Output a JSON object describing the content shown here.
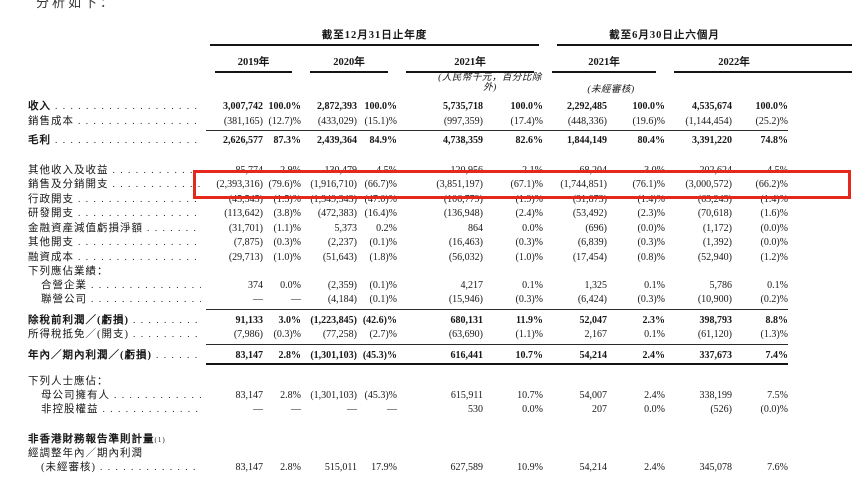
{
  "intro_text": "分析如下：",
  "highlight": {
    "color": "#e5281c",
    "row_label": "銷售及分銷開支"
  },
  "table": {
    "group_headers": [
      {
        "label": "截至12月31日止年度"
      },
      {
        "label": "截至6月30日止六個月"
      }
    ],
    "year_headers": [
      "2019年",
      "2020年",
      "2021年",
      "2021年",
      "2022年"
    ],
    "notes": {
      "currency_note": "(人民幣千元，百分比除外)",
      "unaudited_note": "(未經審核)"
    },
    "rows": [
      {
        "label": "收入",
        "bold": true,
        "leader": true,
        "cells": [
          "3,007,742",
          "100.0%",
          "2,872,393",
          "100.0%",
          "5,735,718",
          "100.0%",
          "2,292,485",
          "100.0%",
          "4,535,674",
          "100.0%"
        ]
      },
      {
        "label": "銷售成本",
        "leader": true,
        "underline": "thin",
        "cells": [
          "(381,165)",
          "(12.7)%",
          "(433,029)",
          "(15.1)%",
          "(997,359)",
          "(17.4)%",
          "(448,336)",
          "(19.6)%",
          "(1,144,454)",
          "(25.2)%"
        ]
      },
      {
        "label": "毛利",
        "bold": true,
        "leader": true,
        "gap": 3,
        "cells": [
          "2,626,577",
          "87.3%",
          "2,439,364",
          "84.9%",
          "4,738,359",
          "82.6%",
          "1,844,149",
          "80.4%",
          "3,391,220",
          "74.8%"
        ]
      },
      {
        "label": "其他收入及收益",
        "leader": true,
        "gap": 15,
        "cells": [
          "85,774",
          "2.9%",
          "130,479",
          "4.5%",
          "120,956",
          "2.1%",
          "68,204",
          "3.0%",
          "202,624",
          "4.5%"
        ]
      },
      {
        "label": "銷售及分銷開支",
        "leader": true,
        "highlight": true,
        "cells": [
          "(2,393,316)",
          "(79.6)%",
          "(1,916,710)",
          "(66.7)%",
          "(3,851,197)",
          "(67.1)%",
          "(1,744,851)",
          "(76.1)%",
          "(3,000,572)",
          "(66.2)%"
        ]
      },
      {
        "label": "行政開支",
        "leader": true,
        "cells": [
          "(45,545)",
          "(1.5)%",
          "(1,349,343)",
          "(47.0)%",
          "(106,779)",
          "(1.9)%",
          "(31,873)",
          "(1.4)%",
          "(63,243)",
          "(1.4)%"
        ]
      },
      {
        "label": "研發開支",
        "leader": true,
        "cells": [
          "(113,642)",
          "(3.8)%",
          "(472,383)",
          "(16.4)%",
          "(136,948)",
          "(2.4)%",
          "(53,492)",
          "(2.3)%",
          "(70,618)",
          "(1.6)%"
        ]
      },
      {
        "label": "金融資產減值虧損淨額",
        "leader": true,
        "cells": [
          "(31,701)",
          "(1.1)%",
          "5,373",
          "0.2%",
          "864",
          "0.0%",
          "(696)",
          "(0.0)%",
          "(1,172)",
          "(0.0)%"
        ]
      },
      {
        "label": "其他開支",
        "leader": true,
        "cells": [
          "(7,875)",
          "(0.3)%",
          "(2,237)",
          "(0.1)%",
          "(16,463)",
          "(0.3)%",
          "(6,839)",
          "(0.3)%",
          "(1,392)",
          "(0.0)%"
        ]
      },
      {
        "label": "融資成本",
        "leader": true,
        "cells": [
          "(29,713)",
          "(1.0)%",
          "(51,643)",
          "(1.8)%",
          "(56,032)",
          "(1.0)%",
          "(17,454)",
          "(0.8)%",
          "(52,940)",
          "(1.2)%"
        ]
      },
      {
        "label": "下列應佔業績：",
        "cells": []
      },
      {
        "label": "合營企業",
        "indent": true,
        "leader": true,
        "cells": [
          "374",
          "0.0%",
          "(2,359)",
          "(0.1)%",
          "4,217",
          "0.1%",
          "1,325",
          "0.1%",
          "5,786",
          "0.1%"
        ]
      },
      {
        "label": "聯營公司",
        "indent": true,
        "leader": true,
        "underline": "thin",
        "cells": [
          "—",
          "—",
          "(4,184)",
          "(0.1)%",
          "(15,946)",
          "(0.3)%",
          "(6,424)",
          "(0.3)%",
          "(10,900)",
          "(0.2)%"
        ]
      },
      {
        "label": "除稅前利潤／(虧損)",
        "bold": true,
        "leader": true,
        "gap": 4,
        "cells": [
          "91,133",
          "3.0%",
          "(1,223,845)",
          "(42.6)%",
          "680,131",
          "11.9%",
          "52,047",
          "2.3%",
          "398,793",
          "8.8%"
        ]
      },
      {
        "label": "所得稅抵免／(開支)",
        "leader": true,
        "underline": "thin",
        "cells": [
          "(7,986)",
          "(0.3)%",
          "(77,258)",
          "(2.7)%",
          "(63,690)",
          "(1.1)%",
          "2,167",
          "0.1%",
          "(61,120)",
          "(1.3)%"
        ]
      },
      {
        "label": "年內／期內利潤／(虧損)",
        "bold": true,
        "leader": true,
        "underline": "thick",
        "gap": 4,
        "cells": [
          "83,147",
          "2.8%",
          "(1,301,103)",
          "(45.3)%",
          "616,441",
          "10.7%",
          "54,214",
          "2.4%",
          "337,673",
          "7.4%"
        ]
      },
      {
        "label": "下列人士應佔：",
        "gap": 10,
        "cells": []
      },
      {
        "label": "母公司擁有人",
        "indent": true,
        "leader": true,
        "cells": [
          "83,147",
          "2.8%",
          "(1,301,103)",
          "(45.3)%",
          "615,911",
          "10.7%",
          "54,007",
          "2.4%",
          "338,199",
          "7.5%"
        ]
      },
      {
        "label": "非控股權益",
        "indent": true,
        "leader": true,
        "cells": [
          "—",
          "—",
          "—",
          "—",
          "530",
          "0.0%",
          "207",
          "0.0%",
          "(526)",
          "(0.0)%"
        ]
      },
      {
        "label": "非香港財務報告準則計量",
        "sup": "(1)",
        "bold": true,
        "gap": 15,
        "cells": []
      },
      {
        "label": "經調整年內／期內利潤",
        "cells": []
      },
      {
        "label": "(未經審核)",
        "indent": true,
        "leader": true,
        "cells": [
          "83,147",
          "2.8%",
          "515,011",
          "17.9%",
          "627,589",
          "10.9%",
          "54,214",
          "2.4%",
          "345,078",
          "7.6%"
        ]
      }
    ]
  }
}
